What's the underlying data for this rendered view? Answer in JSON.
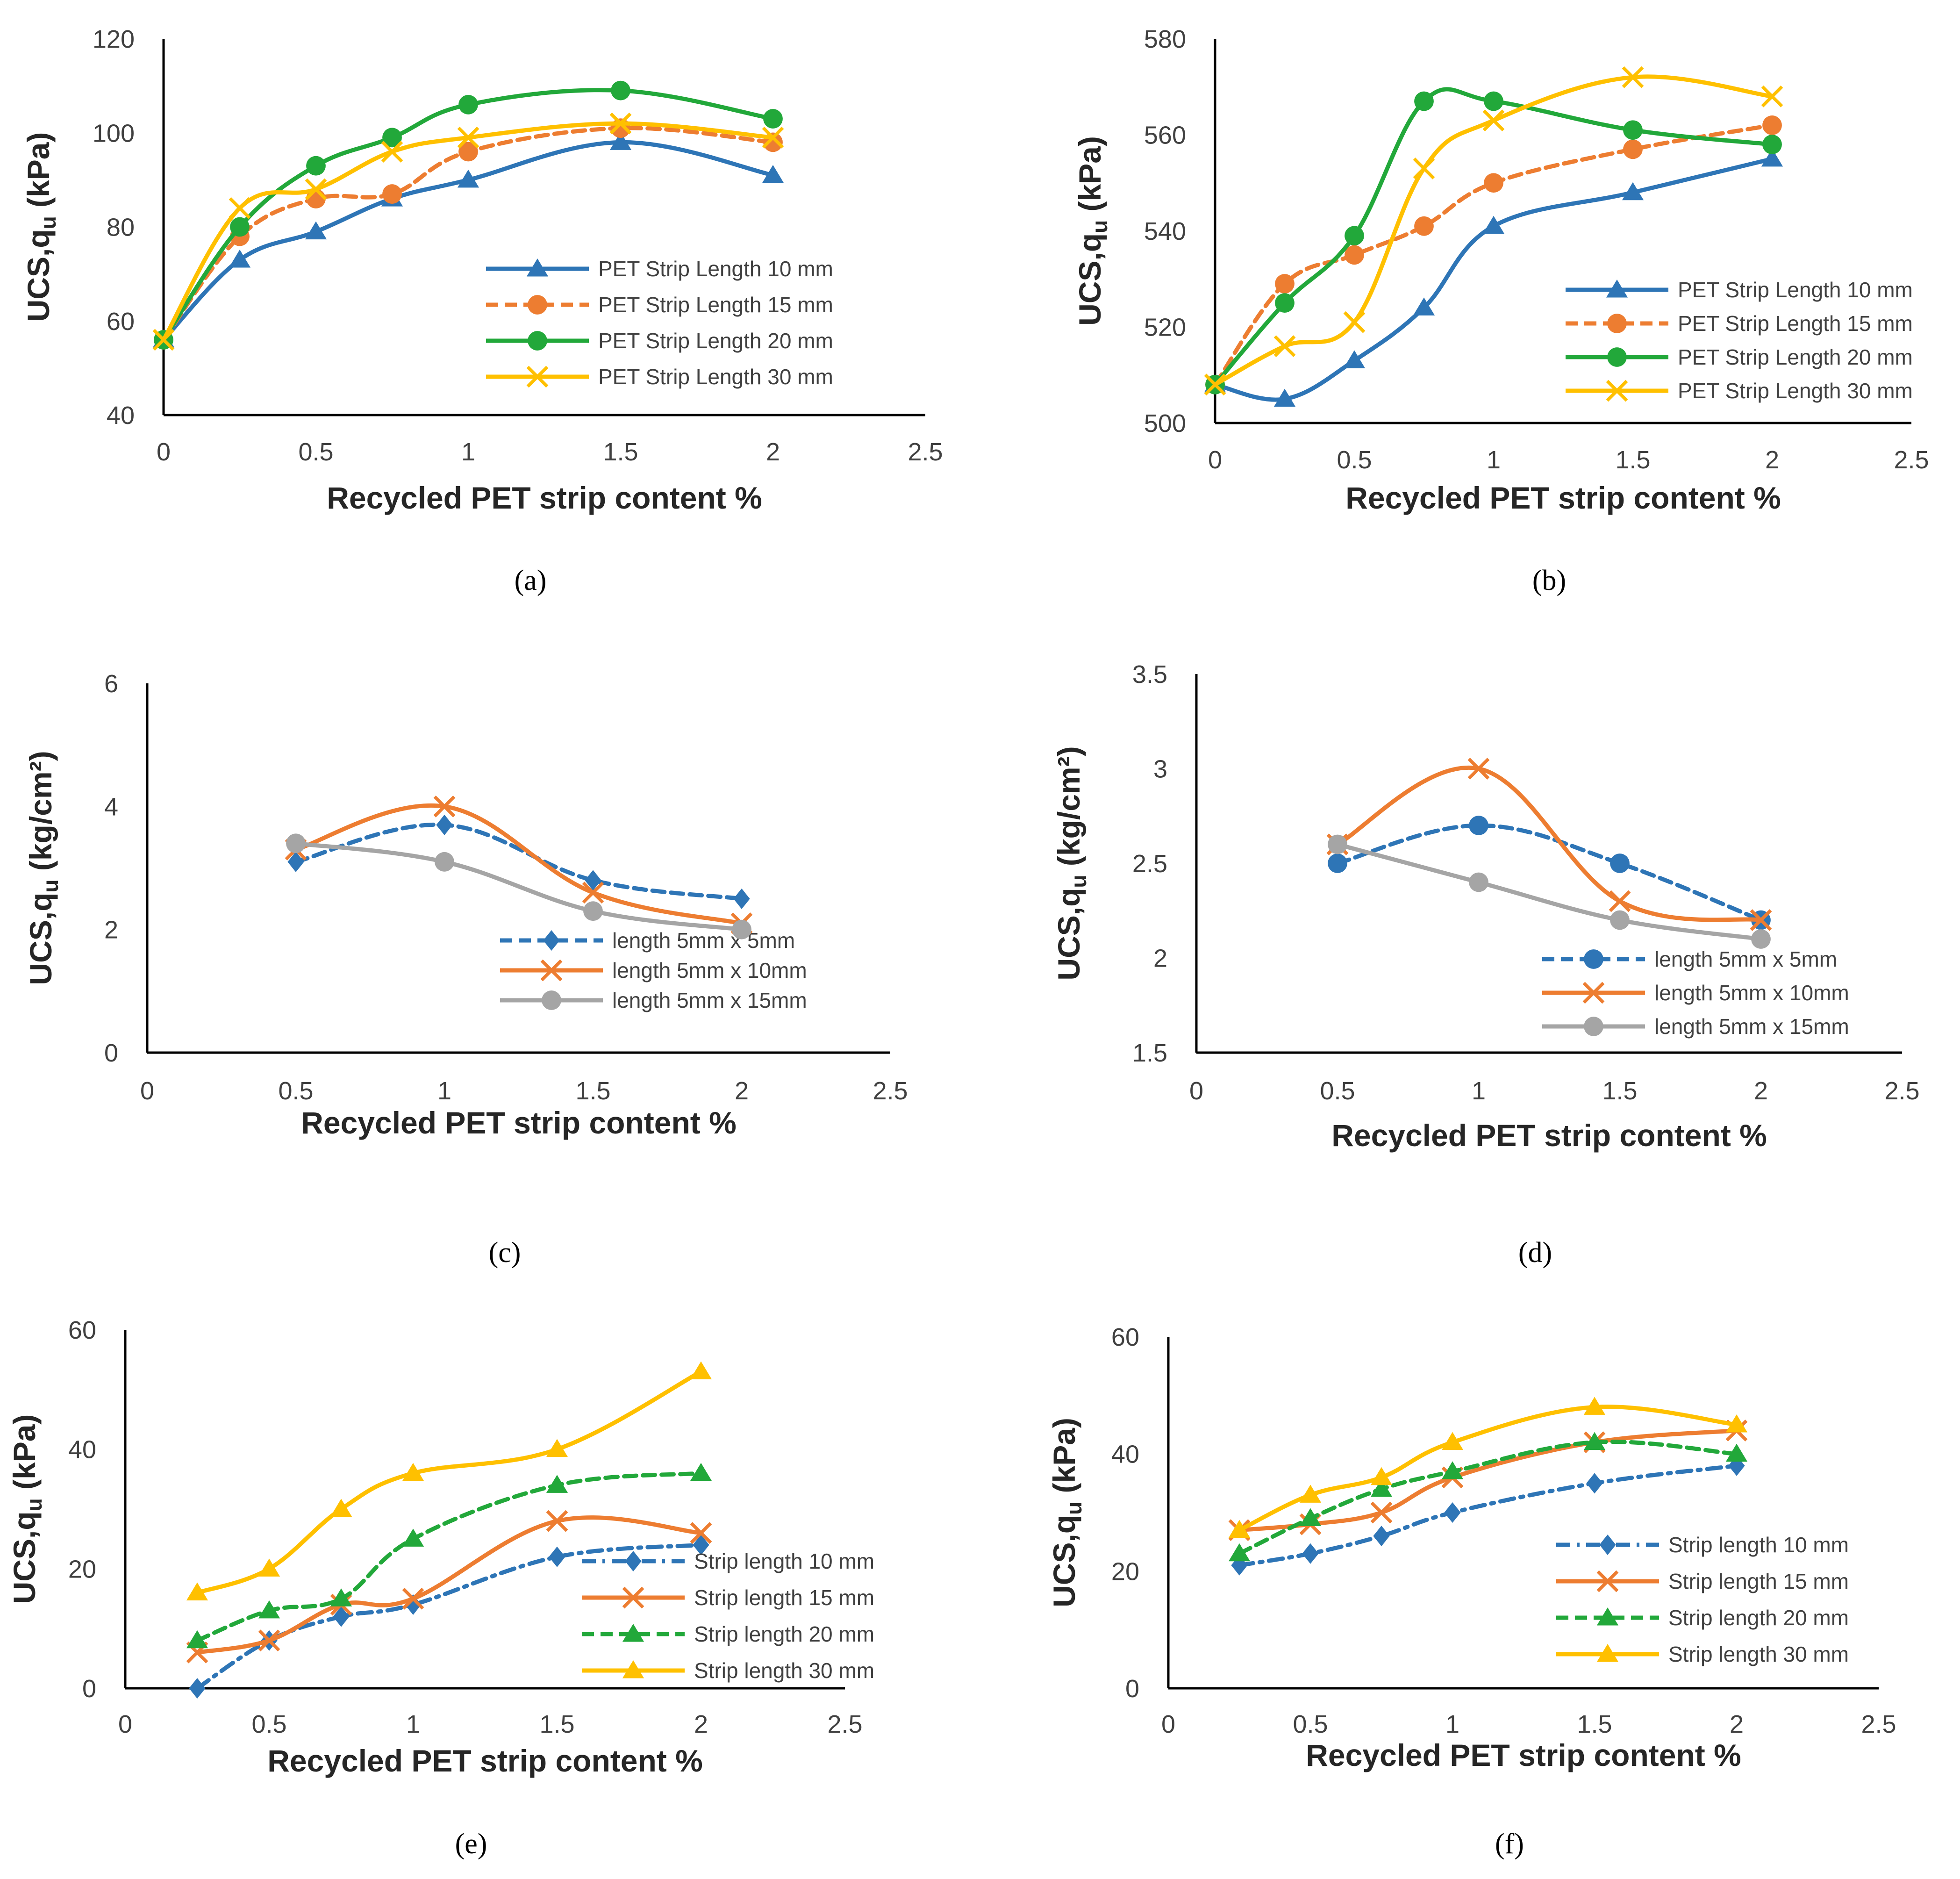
{
  "figure": {
    "colors": {
      "blue": "#2E75B6",
      "orange": "#ED7D31",
      "green": "#22A83A",
      "yellow": "#FFC000",
      "gray": "#A5A5A5"
    }
  },
  "chart_data": [
    {
      "id": "a",
      "type": "line",
      "panel_label": "(a)",
      "xlabel": "Recycled PET strip content %",
      "ylabel_main": "UCS,q",
      "ylabel_sub": "u",
      "ylabel_unit": " (kPa)",
      "xlim": [
        0,
        2.5
      ],
      "ylim": [
        40,
        120
      ],
      "xticks": [
        0,
        0.5,
        1,
        1.5,
        2,
        2.5
      ],
      "xtick_labels": [
        "0",
        "0.5",
        "1",
        "1.5",
        "2",
        "2.5"
      ],
      "yticks": [
        40,
        60,
        80,
        100,
        120
      ],
      "ytick_labels": [
        "40",
        "60",
        "80",
        "100",
        "120"
      ],
      "legend_position": "bottom-right",
      "series": [
        {
          "name": "PET Strip Length  10 mm",
          "color": "blue",
          "marker": "triangle",
          "dash": "solid",
          "x": [
            0,
            0.25,
            0.5,
            0.75,
            1,
            1.5,
            2
          ],
          "values": [
            56,
            73,
            79,
            86,
            90,
            98,
            91
          ]
        },
        {
          "name": "PET Strip Length  15 mm",
          "color": "orange",
          "marker": "circle",
          "dash": "dashed",
          "x": [
            0,
            0.25,
            0.5,
            0.75,
            1,
            1.5,
            2
          ],
          "values": [
            56,
            78,
            86,
            87,
            96,
            101,
            98
          ]
        },
        {
          "name": "PET Strip Length  20 mm",
          "color": "green",
          "marker": "circle",
          "dash": "solid",
          "x": [
            0,
            0.25,
            0.5,
            0.75,
            1,
            1.5,
            2
          ],
          "values": [
            56,
            80,
            93,
            99,
            106,
            109,
            103
          ]
        },
        {
          "name": "PET Strip Length  30 mm",
          "color": "yellow",
          "marker": "x",
          "dash": "solid",
          "x": [
            0,
            0.25,
            0.5,
            0.75,
            1,
            1.5,
            2
          ],
          "values": [
            56,
            84,
            88,
            96,
            99,
            102,
            99
          ]
        }
      ]
    },
    {
      "id": "b",
      "type": "line",
      "panel_label": "(b)",
      "xlabel": "Recycled PET strip content %",
      "ylabel_main": "UCS,q",
      "ylabel_sub": "u",
      "ylabel_unit": " (kPa)",
      "xlim": [
        0,
        2.5
      ],
      "ylim": [
        500,
        580
      ],
      "xticks": [
        0,
        0.5,
        1,
        1.5,
        2,
        2.5
      ],
      "xtick_labels": [
        "0",
        "0.5",
        "1",
        "1.5",
        "2",
        "2.5"
      ],
      "yticks": [
        500,
        520,
        540,
        560,
        580
      ],
      "ytick_labels": [
        "500",
        "520",
        "540",
        "560",
        "580"
      ],
      "legend_position": "bottom-right",
      "series": [
        {
          "name": "PET Strip Length  10 mm",
          "color": "blue",
          "marker": "triangle",
          "dash": "solid",
          "x": [
            0,
            0.25,
            0.5,
            0.75,
            1,
            1.5,
            2
          ],
          "values": [
            508,
            505,
            513,
            524,
            541,
            548,
            555
          ]
        },
        {
          "name": "PET Strip Length  15 mm",
          "color": "orange",
          "marker": "circle",
          "dash": "dashed",
          "x": [
            0,
            0.25,
            0.5,
            0.75,
            1,
            1.5,
            2
          ],
          "values": [
            508,
            529,
            535,
            541,
            550,
            557,
            562
          ]
        },
        {
          "name": "PET Strip Length  20 mm",
          "color": "green",
          "marker": "circle",
          "dash": "solid",
          "x": [
            0,
            0.25,
            0.5,
            0.75,
            1,
            1.5,
            2
          ],
          "values": [
            508,
            525,
            539,
            567,
            567,
            561,
            558
          ]
        },
        {
          "name": "PET Strip Length  30 mm",
          "color": "yellow",
          "marker": "x",
          "dash": "solid",
          "x": [
            0,
            0.25,
            0.5,
            0.75,
            1,
            1.5,
            2
          ],
          "values": [
            508,
            516,
            521,
            553,
            563,
            572,
            568
          ]
        }
      ]
    },
    {
      "id": "c",
      "type": "line",
      "panel_label": "(c)",
      "xlabel": "Recycled PET strip content %",
      "ylabel_main": "UCS,q",
      "ylabel_sub": "u",
      "ylabel_unit": " (kg/cm²)",
      "xlim": [
        0,
        2.5
      ],
      "ylim": [
        0,
        6
      ],
      "xticks": [
        0,
        0.5,
        1,
        1.5,
        2,
        2.5
      ],
      "xtick_labels": [
        "0",
        "0.5",
        "1",
        "1.5",
        "2",
        "2.5"
      ],
      "yticks": [
        0,
        2,
        4,
        6
      ],
      "ytick_labels": [
        "0",
        "2",
        "4",
        "6"
      ],
      "legend_position": "bottom-right",
      "series": [
        {
          "name": "length 5mm x 5mm",
          "color": "blue",
          "marker": "diamond",
          "dash": "dashed",
          "x": [
            0.5,
            1,
            1.5,
            2
          ],
          "values": [
            3.1,
            3.7,
            2.8,
            2.5
          ]
        },
        {
          "name": "length 5mm x 10mm",
          "color": "orange",
          "marker": "x",
          "dash": "solid",
          "x": [
            0.5,
            1,
            1.5,
            2
          ],
          "values": [
            3.3,
            4.0,
            2.6,
            2.1
          ]
        },
        {
          "name": "length 5mm x 15mm",
          "color": "gray",
          "marker": "circle",
          "dash": "solid",
          "x": [
            0.5,
            1,
            1.5,
            2
          ],
          "values": [
            3.4,
            3.1,
            2.3,
            2.0
          ]
        }
      ]
    },
    {
      "id": "d",
      "type": "line",
      "panel_label": "(d)",
      "xlabel": "Recycled PET strip content %",
      "ylabel_main": "UCS,q",
      "ylabel_sub": "u",
      "ylabel_unit": " (kg/cm²)",
      "xlim": [
        0,
        2.5
      ],
      "ylim": [
        1.5,
        3.5
      ],
      "xticks": [
        0,
        0.5,
        1,
        1.5,
        2,
        2.5
      ],
      "xtick_labels": [
        "0",
        "0.5",
        "1",
        "1.5",
        "2",
        "2.5"
      ],
      "yticks": [
        1.5,
        2,
        2.5,
        3,
        3.5
      ],
      "ytick_labels": [
        "1.5",
        "2",
        "2.5",
        "3",
        "3.5"
      ],
      "legend_position": "bottom-right",
      "series": [
        {
          "name": "length 5mm x 5mm",
          "color": "blue",
          "marker": "circle",
          "dash": "dashed",
          "x": [
            0.5,
            1,
            1.5,
            2
          ],
          "values": [
            2.5,
            2.7,
            2.5,
            2.2
          ]
        },
        {
          "name": "length 5mm x 10mm",
          "color": "orange",
          "marker": "x",
          "dash": "solid",
          "x": [
            0.5,
            1,
            1.5,
            2
          ],
          "values": [
            2.6,
            3.0,
            2.3,
            2.2
          ]
        },
        {
          "name": "length 5mm x 15mm",
          "color": "gray",
          "marker": "circle",
          "dash": "solid",
          "x": [
            0.5,
            1,
            1.5,
            2
          ],
          "values": [
            2.6,
            2.4,
            2.2,
            2.1
          ]
        }
      ]
    },
    {
      "id": "e",
      "type": "line",
      "panel_label": "(e)",
      "xlabel": "Recycled PET strip content %",
      "ylabel_main": "UCS,q",
      "ylabel_sub": "u",
      "ylabel_unit": " (kPa)",
      "xlim": [
        0,
        2.5
      ],
      "ylim": [
        0,
        60
      ],
      "xticks": [
        0,
        0.5,
        1,
        1.5,
        2,
        2.5
      ],
      "xtick_labels": [
        "0",
        "0.5",
        "1",
        "1.5",
        "2",
        "2.5"
      ],
      "yticks": [
        0,
        20,
        40,
        60
      ],
      "ytick_labels": [
        "0",
        "20",
        "40",
        "60"
      ],
      "legend_position": "bottom-right",
      "series": [
        {
          "name": "Strip length 10 mm",
          "color": "blue",
          "marker": "diamond",
          "dash": "dashdot",
          "x": [
            0.25,
            0.5,
            0.75,
            1,
            1.5,
            2
          ],
          "values": [
            0,
            8,
            12,
            14,
            22,
            24
          ]
        },
        {
          "name": "Strip length 15 mm",
          "color": "orange",
          "marker": "x",
          "dash": "solid",
          "x": [
            0.25,
            0.5,
            0.75,
            1,
            1.5,
            2
          ],
          "values": [
            6,
            8,
            14,
            15,
            28,
            26
          ]
        },
        {
          "name": "Strip length 20 mm",
          "color": "green",
          "marker": "triangle",
          "dash": "dashed",
          "x": [
            0.25,
            0.5,
            0.75,
            1,
            1.5,
            2
          ],
          "values": [
            8,
            13,
            15,
            25,
            34,
            36
          ]
        },
        {
          "name": "Strip length 30 mm",
          "color": "yellow",
          "marker": "triangle",
          "dash": "solid",
          "x": [
            0.25,
            0.5,
            0.75,
            1,
            1.5,
            2
          ],
          "values": [
            16,
            20,
            30,
            36,
            40,
            53
          ]
        }
      ]
    },
    {
      "id": "f",
      "type": "line",
      "panel_label": "(f)",
      "xlabel": "Recycled PET strip content %",
      "ylabel_main": "UCS,q",
      "ylabel_sub": "u",
      "ylabel_unit": " (kPa)",
      "xlim": [
        0,
        2.5
      ],
      "ylim": [
        0,
        60
      ],
      "xticks": [
        0,
        0.5,
        1,
        1.5,
        2,
        2.5
      ],
      "xtick_labels": [
        "0",
        "0.5",
        "1",
        "1.5",
        "2",
        "2.5"
      ],
      "yticks": [
        0,
        20,
        40,
        60
      ],
      "ytick_labels": [
        "0",
        "20",
        "40",
        "60"
      ],
      "legend_position": "bottom-right",
      "series": [
        {
          "name": "Strip length 10 mm",
          "color": "blue",
          "marker": "diamond",
          "dash": "dashdot",
          "x": [
            0.25,
            0.5,
            0.75,
            1,
            1.5,
            2
          ],
          "values": [
            21,
            23,
            26,
            30,
            35,
            38
          ]
        },
        {
          "name": "Strip length 15 mm",
          "color": "orange",
          "marker": "x",
          "dash": "solid",
          "x": [
            0.25,
            0.5,
            0.75,
            1,
            1.5,
            2
          ],
          "values": [
            27,
            28,
            30,
            36,
            42,
            44
          ]
        },
        {
          "name": "Strip length 20 mm",
          "color": "green",
          "marker": "triangle",
          "dash": "dashed",
          "x": [
            0.25,
            0.5,
            0.75,
            1,
            1.5,
            2
          ],
          "values": [
            23,
            29,
            34,
            37,
            42,
            40
          ]
        },
        {
          "name": "Strip length 30 mm",
          "color": "yellow",
          "marker": "triangle",
          "dash": "solid",
          "x": [
            0.25,
            0.5,
            0.75,
            1,
            1.5,
            2
          ],
          "values": [
            27,
            33,
            36,
            42,
            48,
            45
          ]
        }
      ]
    }
  ]
}
